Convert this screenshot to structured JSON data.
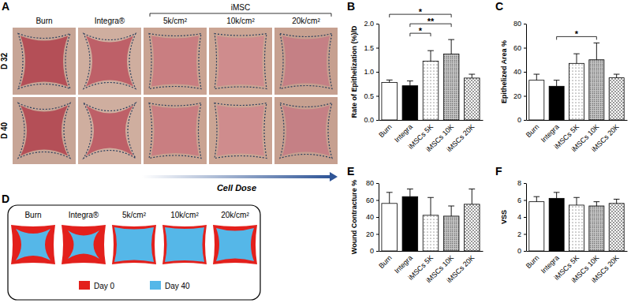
{
  "photo_panel": {
    "title": "A",
    "columns": [
      "Burn",
      "Integra®",
      "5k/cm²",
      "10k/cm²",
      "20k/cm²"
    ],
    "group": {
      "label": "iMSC",
      "from": "5k/cm²",
      "to": "20k/cm²"
    },
    "rows": [
      "D 32",
      "D 40"
    ],
    "arrow_label": "Cell Dose"
  },
  "schematic_panel": {
    "title": "D",
    "columns": [
      "Burn",
      "Integra®",
      "5k/cm²",
      "10k/cm²",
      "20k/cm²"
    ],
    "key": [
      {
        "label": "Day 0",
        "color": "#e3201c"
      },
      {
        "label": "Day 40",
        "color": "#55b7e8"
      }
    ]
  },
  "chart_data": [
    {
      "type": "bar",
      "title": "B",
      "y_label": "Rate of Epithelization (%)/D",
      "categories": [
        "Burn",
        "Integra",
        "iMSCs 5K",
        "iMSCs 10K",
        "iMSCs 20K"
      ],
      "values": [
        0.78,
        0.71,
        1.22,
        1.37,
        0.87
      ],
      "errors": [
        0.05,
        0.1,
        0.22,
        0.3,
        0.08
      ],
      "colors": [
        "#ffffff",
        "#000000",
        "#ffffff",
        "#c8c8c8",
        "#ffffff"
      ],
      "ylim": [
        0,
        2
      ],
      "yticks": [
        {
          "value": 0,
          "label": "0.0"
        },
        0.5,
        {
          "value": 1,
          "label": "1.0"
        },
        1.5,
        {
          "value": 2,
          "label": "2.0"
        }
      ],
      "annotations": [
        {
          "from": "Integra",
          "to": "iMSCs 5K",
          "label": "*"
        },
        {
          "from": "Integra",
          "to": "iMSCs 10K",
          "label": "**"
        },
        {
          "from": "Burn",
          "to": "iMSCs 10K",
          "label": "*"
        }
      ]
    },
    {
      "type": "bar",
      "title": "C",
      "y_label": "Epithelized Area %",
      "categories": [
        "Burn",
        "Integra",
        "iMSCs 5K",
        "iMSCs 10K",
        "iMSCs 20K"
      ],
      "values": [
        33,
        28,
        47,
        50,
        35
      ],
      "errors": [
        5,
        5,
        8,
        14,
        3
      ],
      "colors": [
        "#ffffff",
        "#000000",
        "#ffffff",
        "#c8c8c8",
        "#ffffff"
      ],
      "ylim": [
        0,
        80
      ],
      "yticks": [
        0,
        20,
        40,
        60,
        80
      ],
      "annotations": [
        {
          "from": "Integra",
          "to": "iMSCs 10K",
          "label": "*"
        }
      ]
    },
    {
      "type": "bar",
      "title": "E",
      "y_label": "Wound Contracture %",
      "categories": [
        "Burn",
        "Integra",
        "iMSCs 5K",
        "iMSCs 10K",
        "iMSCs 20K"
      ],
      "values": [
        56,
        64,
        42,
        41,
        55
      ],
      "errors": [
        13,
        9,
        21,
        12,
        18
      ],
      "colors": [
        "#ffffff",
        "#000000",
        "#ffffff",
        "#c8c8c8",
        "#ffffff"
      ],
      "ylim": [
        0,
        80
      ],
      "yticks": [
        0,
        20,
        40,
        60,
        80
      ]
    },
    {
      "type": "bar",
      "title": "F",
      "y_label": "VSS",
      "categories": [
        "Burn",
        "Integra",
        "iMSCs 5K",
        "iMSCs 10K",
        "iMSCs 20K"
      ],
      "values": [
        5.8,
        6.2,
        5.4,
        5.3,
        5.6
      ],
      "errors": [
        0.6,
        0.7,
        0.9,
        0.5,
        0.5
      ],
      "colors": [
        "#ffffff",
        "#000000",
        "#ffffff",
        "#c8c8c8",
        "#ffffff"
      ],
      "ylim": [
        0,
        8
      ],
      "yticks": [
        0,
        2,
        4,
        6,
        8
      ]
    }
  ]
}
